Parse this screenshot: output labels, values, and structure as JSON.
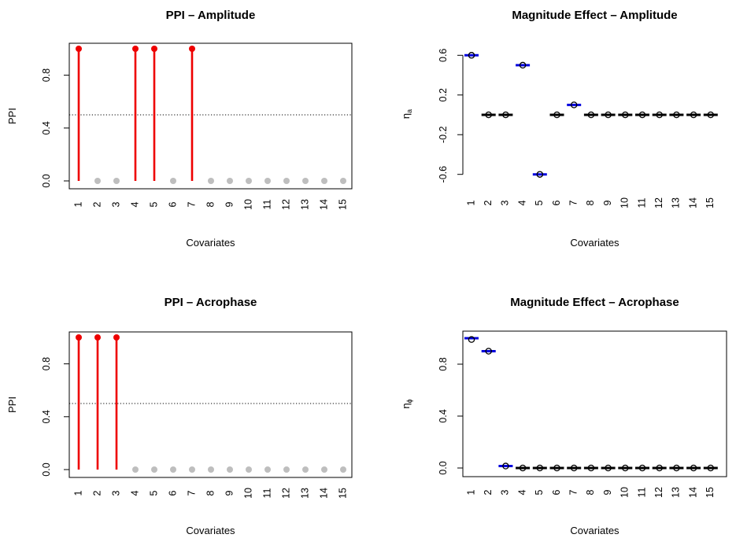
{
  "colors": {
    "selected": "#ee0000",
    "not_selected": "#bebebe",
    "truth_line": "#0000dd",
    "estimate": "#000000"
  },
  "chart_data": [
    {
      "id": "ppi-amplitude",
      "type": "lollipop",
      "title": "PPI – Amplitude",
      "xlabel": "Covariates",
      "ylabel": "PPI",
      "categories": [
        "1",
        "2",
        "3",
        "4",
        "5",
        "6",
        "7",
        "8",
        "9",
        "10",
        "11",
        "12",
        "13",
        "14",
        "15"
      ],
      "values": [
        1,
        0,
        0,
        1,
        1,
        0,
        1,
        0,
        0,
        0,
        0,
        0,
        0,
        0,
        0
      ],
      "ylim": [
        0,
        1
      ],
      "yticks": [
        "0.0",
        "0.4",
        "0.8"
      ],
      "ytick_values": [
        0,
        0.4,
        0.8
      ],
      "threshold": 0.5,
      "threshold_style": "dotted",
      "box": true
    },
    {
      "id": "magnitude-amplitude",
      "type": "scatter",
      "title": "Magnitude Effect – Amplitude",
      "xlabel": "Covariates",
      "ylabel": "ηa",
      "ylabel_main": "η",
      "ylabel_sub": "a",
      "categories": [
        "1",
        "2",
        "3",
        "4",
        "5",
        "6",
        "7",
        "8",
        "9",
        "10",
        "11",
        "12",
        "13",
        "14",
        "15"
      ],
      "estimates": [
        0.6,
        0,
        0,
        0.5,
        -0.6,
        0,
        0.1,
        0,
        0,
        0,
        0,
        0,
        0,
        0,
        0
      ],
      "truth": [
        0.6,
        0,
        0,
        0.5,
        -0.6,
        0,
        0.1,
        0,
        0,
        0,
        0,
        0,
        0,
        0,
        0
      ],
      "truth_colored": [
        true,
        false,
        false,
        true,
        true,
        false,
        true,
        false,
        false,
        false,
        false,
        false,
        false,
        false,
        false
      ],
      "ylim": [
        -0.65,
        0.65
      ],
      "yticks": [
        "-0.6",
        "-0.2",
        "0.2",
        "0.6"
      ],
      "ytick_values": [
        -0.6,
        -0.2,
        0.2,
        0.6
      ],
      "box": false
    },
    {
      "id": "ppi-acrophase",
      "type": "lollipop",
      "title": "PPI – Acrophase",
      "xlabel": "Covariates",
      "ylabel": "PPI",
      "categories": [
        "1",
        "2",
        "3",
        "4",
        "5",
        "6",
        "7",
        "8",
        "9",
        "10",
        "11",
        "12",
        "13",
        "14",
        "15"
      ],
      "values": [
        1,
        1,
        1,
        0,
        0,
        0,
        0,
        0,
        0,
        0,
        0,
        0,
        0,
        0,
        0
      ],
      "ylim": [
        0,
        1
      ],
      "yticks": [
        "0.0",
        "0.4",
        "0.8"
      ],
      "ytick_values": [
        0,
        0.4,
        0.8
      ],
      "threshold": 0.5,
      "threshold_style": "dotted",
      "box": true
    },
    {
      "id": "magnitude-acrophase",
      "type": "scatter",
      "title": "Magnitude Effect – Acrophase",
      "xlabel": "Covariates",
      "ylabel": "ηϕ",
      "ylabel_main": "η",
      "ylabel_sub": "ϕ",
      "categories": [
        "1",
        "2",
        "3",
        "4",
        "5",
        "6",
        "7",
        "8",
        "9",
        "10",
        "11",
        "12",
        "13",
        "14",
        "15"
      ],
      "estimates": [
        0.99,
        0.9,
        0.015,
        0,
        0,
        0,
        0,
        0,
        0,
        0,
        0,
        0,
        0,
        0,
        0
      ],
      "truth": [
        1.0,
        0.9,
        0.015,
        0,
        0,
        0,
        0,
        0,
        0,
        0,
        0,
        0,
        0,
        0,
        0
      ],
      "truth_colored": [
        true,
        true,
        true,
        false,
        false,
        false,
        false,
        false,
        false,
        false,
        false,
        false,
        false,
        false,
        false
      ],
      "ylim": [
        0,
        1.0
      ],
      "yticks": [
        "0.0",
        "0.4",
        "0.8"
      ],
      "ytick_values": [
        0,
        0.4,
        0.8
      ],
      "box": true
    }
  ]
}
